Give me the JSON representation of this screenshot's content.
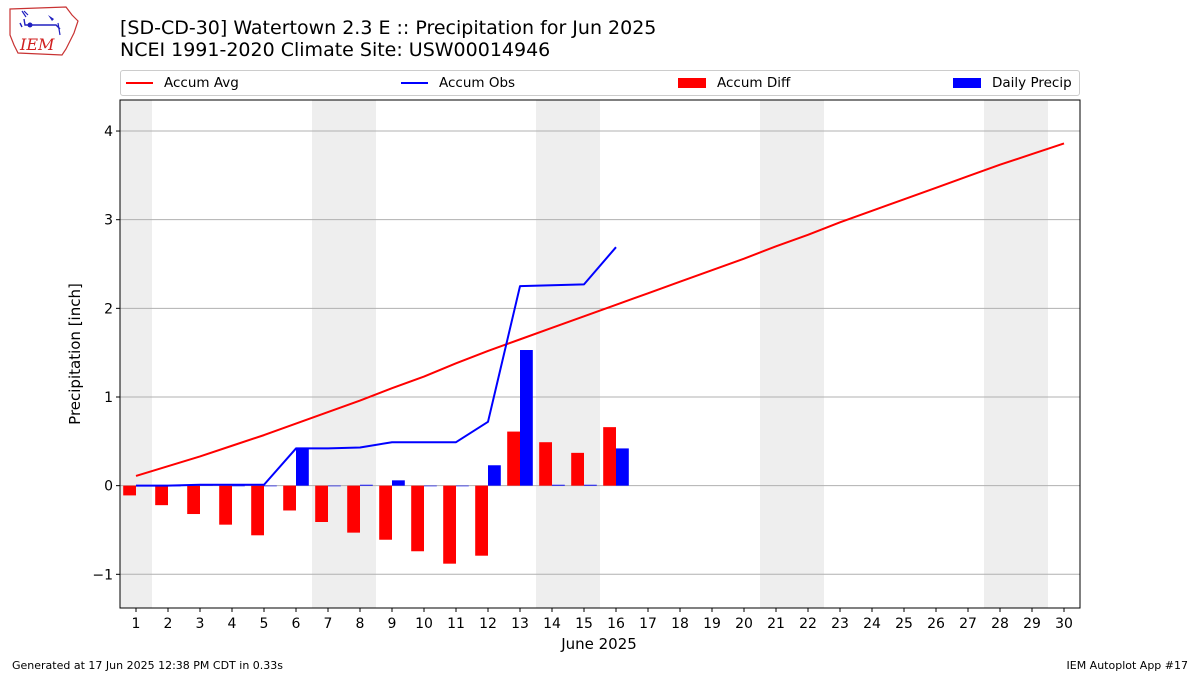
{
  "header": {
    "title_line1": "[SD-CD-30] Watertown 2.3 E :: Precipitation for Jun 2025",
    "title_line2": "NCEI 1991-2020 Climate Site: USW00014946",
    "logo_text": "IEM"
  },
  "footer": {
    "generated": "Generated at 17 Jun 2025 12:38 PM CDT in 0.33s",
    "app": "IEM Autoplot App #17"
  },
  "colors": {
    "avg": "#ff0000",
    "obs": "#0000ff",
    "diff": "#ff0000",
    "daily": "#0000ff",
    "weekend_shade": "#eeeeee",
    "grid": "#b0b0b0"
  },
  "chart_data": {
    "type": "bar",
    "xlabel": "June 2025",
    "ylabel": "Precipitation [inch]",
    "xlim": [
      0.5,
      30.5
    ],
    "ylim": [
      -1.38,
      4.35
    ],
    "yticks": [
      -1,
      0,
      1,
      2,
      3,
      4
    ],
    "ytick_labels": [
      "−1",
      "0",
      "1",
      "2",
      "3",
      "4"
    ],
    "grid": "horizontal",
    "legend_position": "top",
    "days": [
      "1",
      "2",
      "3",
      "4",
      "5",
      "6",
      "7",
      "8",
      "9",
      "10",
      "11",
      "12",
      "13",
      "14",
      "15",
      "16",
      "17",
      "18",
      "19",
      "20",
      "21",
      "22",
      "23",
      "24",
      "25",
      "26",
      "27",
      "28",
      "29",
      "30"
    ],
    "weekend_days": [
      1,
      7,
      8,
      14,
      15,
      21,
      22,
      28,
      29
    ],
    "legend": [
      "Accum Avg",
      "Accum Obs",
      "Accum Diff",
      "Daily Precip"
    ],
    "series": [
      {
        "name": "Accum Avg",
        "kind": "line",
        "values": [
          0.11,
          0.22,
          0.33,
          0.45,
          0.57,
          0.7,
          0.83,
          0.96,
          1.1,
          1.23,
          1.38,
          1.52,
          1.65,
          1.78,
          1.91,
          2.04,
          2.17,
          2.3,
          2.43,
          2.56,
          2.7,
          2.83,
          2.97,
          3.1,
          3.23,
          3.36,
          3.49,
          3.62,
          3.74,
          3.86
        ]
      },
      {
        "name": "Accum Obs",
        "kind": "line",
        "values": [
          0.0,
          0.0,
          0.01,
          0.01,
          0.01,
          0.42,
          0.42,
          0.43,
          0.49,
          0.49,
          0.49,
          0.72,
          2.25,
          2.26,
          2.27,
          2.69
        ]
      },
      {
        "name": "Accum Diff",
        "kind": "bar",
        "values": [
          -0.11,
          -0.22,
          -0.32,
          -0.44,
          -0.56,
          -0.28,
          -0.41,
          -0.53,
          -0.61,
          -0.74,
          -0.88,
          -0.79,
          0.61,
          0.49,
          0.37,
          0.66
        ]
      },
      {
        "name": "Daily Precip",
        "kind": "bar",
        "values": [
          0.0,
          0.0,
          0.01,
          0.0,
          0.0,
          0.42,
          0.0,
          0.01,
          0.06,
          0.0,
          0.0,
          0.23,
          1.53,
          0.01,
          0.01,
          0.42
        ]
      }
    ]
  }
}
